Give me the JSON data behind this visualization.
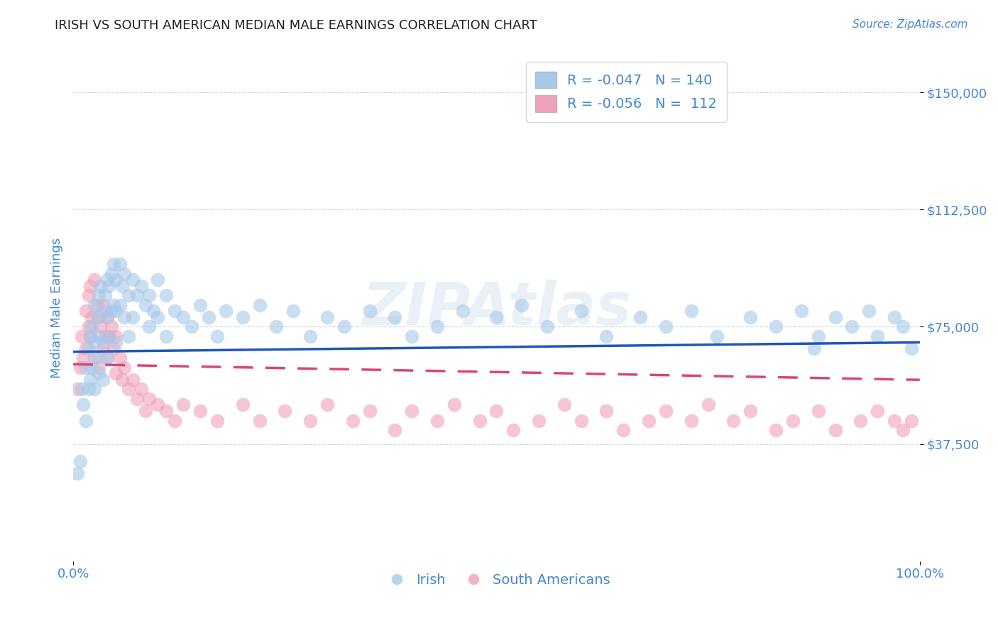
{
  "title": "IRISH VS SOUTH AMERICAN MEDIAN MALE EARNINGS CORRELATION CHART",
  "source_text": "Source: ZipAtlas.com",
  "ylabel": "Median Male Earnings",
  "xlim": [
    0,
    1
  ],
  "ylim": [
    0,
    162000
  ],
  "yticks": [
    37500,
    75000,
    112500,
    150000
  ],
  "ytick_labels": [
    "$37,500",
    "$75,000",
    "$112,500",
    "$150,000"
  ],
  "watermark": "ZIPAtlas",
  "irish_color": "#a8c8e8",
  "irish_line_color": "#2255bb",
  "south_american_color": "#f0a0b8",
  "south_american_line_color": "#dd4477",
  "irish_R": -0.047,
  "irish_N": 140,
  "south_american_R": -0.056,
  "south_american_N": 112,
  "title_color": "#222222",
  "axis_label_color": "#4488cc",
  "tick_color": "#4488cc",
  "grid_color": "#c8d8e8",
  "background_color": "#ffffff",
  "irish_x": [
    0.005,
    0.008,
    0.01,
    0.012,
    0.015,
    0.015,
    0.018,
    0.018,
    0.02,
    0.02,
    0.022,
    0.022,
    0.025,
    0.025,
    0.025,
    0.028,
    0.028,
    0.03,
    0.03,
    0.03,
    0.032,
    0.035,
    0.035,
    0.035,
    0.038,
    0.04,
    0.04,
    0.04,
    0.042,
    0.042,
    0.045,
    0.045,
    0.048,
    0.048,
    0.05,
    0.05,
    0.05,
    0.055,
    0.055,
    0.058,
    0.06,
    0.06,
    0.065,
    0.065,
    0.07,
    0.07,
    0.075,
    0.08,
    0.085,
    0.09,
    0.09,
    0.095,
    0.1,
    0.1,
    0.11,
    0.11,
    0.12,
    0.13,
    0.14,
    0.15,
    0.16,
    0.17,
    0.18,
    0.2,
    0.22,
    0.24,
    0.26,
    0.28,
    0.3,
    0.32,
    0.35,
    0.38,
    0.4,
    0.43,
    0.46,
    0.5,
    0.53,
    0.56,
    0.6,
    0.63,
    0.67,
    0.7,
    0.73,
    0.76,
    0.8,
    0.83,
    0.86,
    0.875,
    0.88,
    0.9,
    0.92,
    0.94,
    0.95,
    0.97,
    0.98,
    0.99
  ],
  "irish_y": [
    28000,
    32000,
    55000,
    50000,
    62000,
    45000,
    68000,
    55000,
    72000,
    58000,
    75000,
    62000,
    82000,
    70000,
    55000,
    78000,
    65000,
    85000,
    72000,
    60000,
    88000,
    80000,
    70000,
    58000,
    85000,
    90000,
    78000,
    65000,
    88000,
    72000,
    92000,
    80000,
    95000,
    82000,
    90000,
    80000,
    70000,
    95000,
    82000,
    88000,
    92000,
    78000,
    85000,
    72000,
    90000,
    78000,
    85000,
    88000,
    82000,
    85000,
    75000,
    80000,
    90000,
    78000,
    85000,
    72000,
    80000,
    78000,
    75000,
    82000,
    78000,
    72000,
    80000,
    78000,
    82000,
    75000,
    80000,
    72000,
    78000,
    75000,
    80000,
    78000,
    72000,
    75000,
    80000,
    78000,
    82000,
    75000,
    80000,
    72000,
    78000,
    75000,
    80000,
    72000,
    78000,
    75000,
    80000,
    68000,
    72000,
    78000,
    75000,
    80000,
    72000,
    78000,
    75000,
    68000
  ],
  "sa_x": [
    0.005,
    0.008,
    0.01,
    0.012,
    0.015,
    0.015,
    0.018,
    0.018,
    0.02,
    0.02,
    0.022,
    0.025,
    0.025,
    0.028,
    0.03,
    0.03,
    0.032,
    0.035,
    0.035,
    0.038,
    0.04,
    0.04,
    0.042,
    0.045,
    0.048,
    0.05,
    0.05,
    0.055,
    0.058,
    0.06,
    0.065,
    0.07,
    0.075,
    0.08,
    0.085,
    0.09,
    0.1,
    0.11,
    0.12,
    0.13,
    0.15,
    0.17,
    0.2,
    0.22,
    0.25,
    0.28,
    0.3,
    0.33,
    0.35,
    0.38,
    0.4,
    0.43,
    0.45,
    0.48,
    0.5,
    0.52,
    0.55,
    0.58,
    0.6,
    0.63,
    0.65,
    0.68,
    0.7,
    0.73,
    0.75,
    0.78,
    0.8,
    0.83,
    0.85,
    0.88,
    0.9,
    0.93,
    0.95,
    0.97,
    0.98,
    0.99
  ],
  "sa_y": [
    55000,
    62000,
    72000,
    65000,
    80000,
    68000,
    85000,
    75000,
    88000,
    72000,
    78000,
    90000,
    65000,
    82000,
    78000,
    62000,
    75000,
    82000,
    68000,
    72000,
    78000,
    65000,
    72000,
    75000,
    68000,
    72000,
    60000,
    65000,
    58000,
    62000,
    55000,
    58000,
    52000,
    55000,
    48000,
    52000,
    50000,
    48000,
    45000,
    50000,
    48000,
    45000,
    50000,
    45000,
    48000,
    45000,
    50000,
    45000,
    48000,
    42000,
    48000,
    45000,
    50000,
    45000,
    48000,
    42000,
    45000,
    50000,
    45000,
    48000,
    42000,
    45000,
    48000,
    45000,
    50000,
    45000,
    48000,
    42000,
    45000,
    48000,
    42000,
    45000,
    48000,
    45000,
    42000,
    45000
  ]
}
